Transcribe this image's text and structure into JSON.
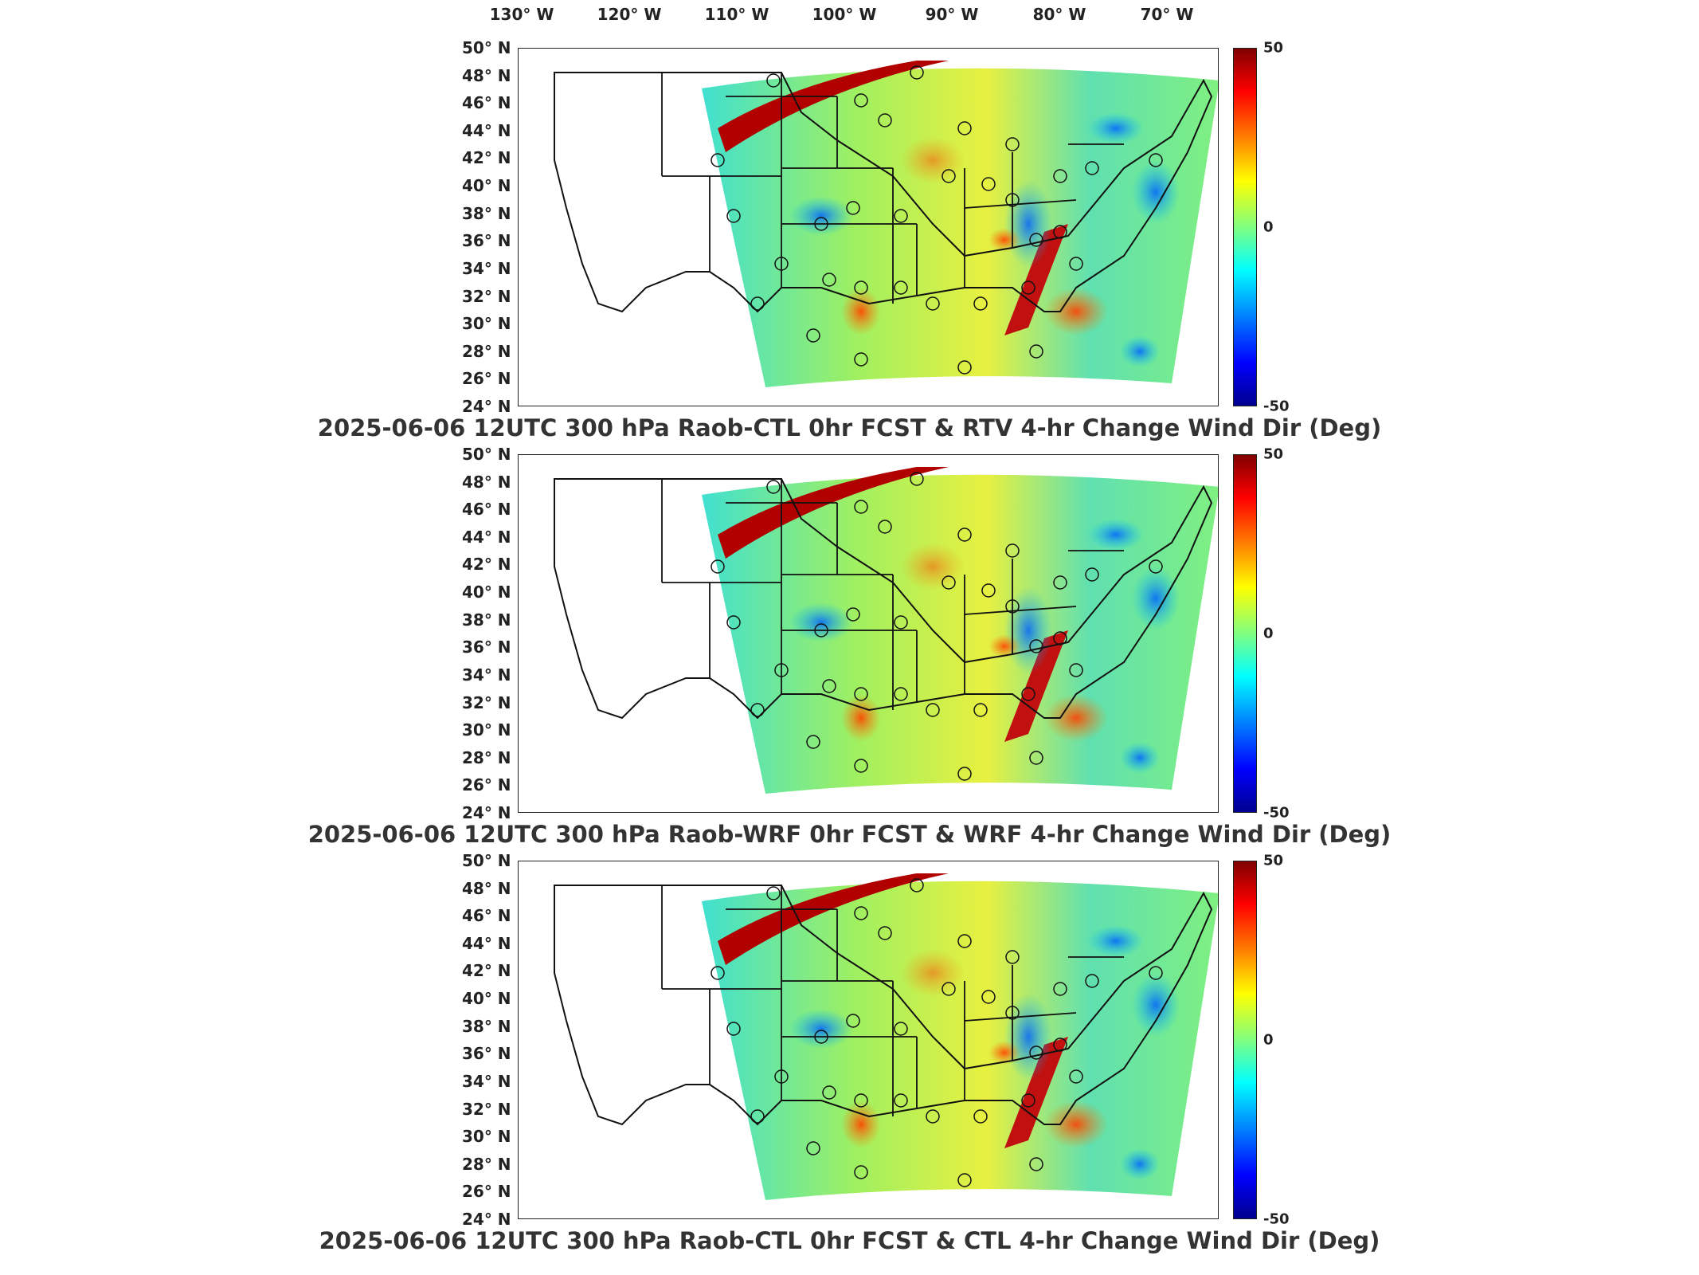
{
  "longitude_labels": [
    "130° W",
    "120° W",
    "110° W",
    "100° W",
    "90° W",
    "80° W",
    "70° W"
  ],
  "latitude_labels": [
    "50° N",
    "48° N",
    "46° N",
    "44° N",
    "42° N",
    "40° N",
    "38° N",
    "36° N",
    "34° N",
    "32° N",
    "30° N",
    "28° N",
    "26° N",
    "24° N"
  ],
  "colorbar": {
    "max": "50",
    "mid": "0",
    "min": "-50",
    "colors": [
      "#800000",
      "#ff0000",
      "#ff8000",
      "#ffff00",
      "#80ff80",
      "#00ffff",
      "#0080ff",
      "#0000ff",
      "#00008f"
    ]
  },
  "panels": [
    {
      "title": "2025-06-06 12UTC 300 hPa Raob-CTL 0hr FCST & RTV 4-hr Change Wind Dir (Deg)"
    },
    {
      "title": "2025-06-06 12UTC 300 hPa Raob-WRF 0hr FCST & WRF 4-hr Change Wind Dir (Deg)"
    },
    {
      "title": "2025-06-06 12UTC 300 hPa Raob-CTL 0hr FCST & CTL 4-hr Change Wind Dir (Deg)"
    }
  ]
}
